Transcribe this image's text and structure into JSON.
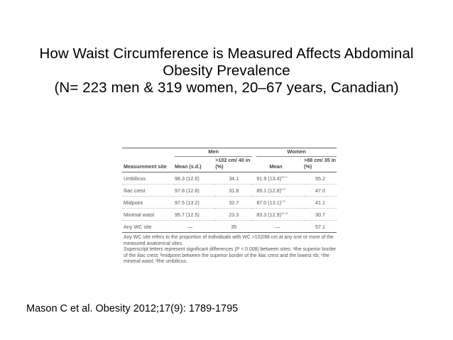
{
  "title": {
    "line1": "How Waist Circumference is Measured Affects Abdominal",
    "line2": "Obesity Prevalence",
    "line3": "(N= 223 men & 319 women, 20–67 years, Canadian)"
  },
  "table": {
    "group_men": "Men",
    "group_women": "Women",
    "col_site": "Measurement site",
    "col_men_mean": "Mean (s.d.)",
    "col_men_pct": ">102 cm/ 40 in (%)",
    "col_women_mean": "Mean",
    "col_women_pct": ">88 cm/ 35 in (%)",
    "rows": [
      {
        "site": "Umbilicus",
        "men_mean": "98.3 (12.6)",
        "men_pct": "34.1",
        "women_mean": "91.9 (13.4)",
        "women_sup": "a,b,c",
        "women_pct": "55.2"
      },
      {
        "site": "Iliac crest",
        "men_mean": "97.8 (12.8)",
        "men_pct": "31.8",
        "women_mean": "89.1 (12.8)",
        "women_sup": "b,d",
        "women_pct": "47.0"
      },
      {
        "site": "Midpoint",
        "men_mean": "97.5 (13.2)",
        "men_pct": "32.7",
        "women_mean": "87.0 (13.1)",
        "women_sup": "c,d",
        "women_pct": "41.1"
      },
      {
        "site": "Minimal waist",
        "men_mean": "95.7 (12.5)",
        "men_pct": "23.3",
        "women_mean": "83.3 (12.9)",
        "women_sup": "a,b,d",
        "women_pct": "30.7"
      },
      {
        "site": "Any WC site",
        "men_mean": "—",
        "men_pct": "35",
        "women_mean": "—",
        "women_sup": "",
        "women_pct": "57.1"
      }
    ],
    "footnote_1": "Any WC site refers to the proportion of individuals with WC >102/88 cm at any one or more of the measured anatomical sites.",
    "footnote_2": "Superscript letters represent significant differences (P < 0.008) between sites: ᵃthe superior border of the iliac crest; ᵇmidpoint between the superior border of the iliac crest and the lowest rib; ᶜthe minimal waist; ᵈthe umbilicus."
  },
  "citation": "Mason C et al. Obesity 2012;17(9): 1789-1795"
}
